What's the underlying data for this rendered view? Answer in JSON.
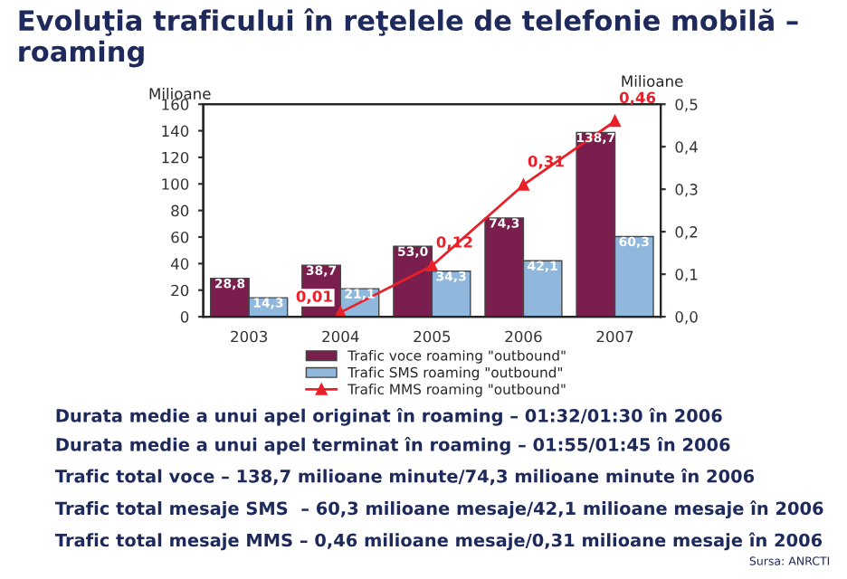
{
  "chart_data": {
    "type": "bar",
    "title": "Evoluţia traficului în reţelele de telefonie mobilă – roaming",
    "categories": [
      "2003",
      "2004",
      "2005",
      "2006",
      "2007"
    ],
    "series": [
      {
        "name": "Trafic voce roaming \"outbound\"",
        "color": "#7a1f4d",
        "values": [
          28.8,
          38.7,
          53.0,
          74.3,
          138.7
        ],
        "value_labels": [
          "28,8",
          "38,7",
          "53,0",
          "74,3",
          "138,7"
        ]
      },
      {
        "name": "Trafic SMS roaming \"outbound\"",
        "color": "#8fb8dc",
        "values": [
          14.3,
          21.1,
          34.3,
          42.1,
          60.3
        ],
        "value_labels": [
          "14,3",
          "21,1",
          "34,3",
          "42,1",
          "60,3"
        ]
      },
      {
        "name": "Trafic MMS roaming \"outbound\"",
        "color": "#e8202a",
        "type": "line",
        "axis": "y2",
        "values": [
          null,
          0.01,
          0.12,
          0.31,
          0.46
        ],
        "value_labels": [
          null,
          "0,01",
          "0,12",
          "0,31",
          "0,46"
        ]
      }
    ],
    "ylabel": "Milioane",
    "y2label": "Milioane",
    "ylim": [
      0,
      160
    ],
    "yticks": [
      0,
      20,
      40,
      60,
      80,
      100,
      120,
      140,
      160
    ],
    "y2lim": [
      0,
      0.5
    ],
    "y2ticks": [
      {
        "value": 0,
        "label": "0,0"
      },
      {
        "value": 0.1,
        "label": "0,1"
      },
      {
        "value": 0.2,
        "label": "0,2"
      },
      {
        "value": 0.3,
        "label": "0,3"
      },
      {
        "value": 0.4,
        "label": "0,4"
      },
      {
        "value": 0.5,
        "label": "0,5"
      }
    ],
    "marker": "triangle",
    "legend": "bottom",
    "grid": false,
    "annotations": [
      "Durata medie a unui apel originat în roaming – 01:32/01:30 în 2006",
      "Durata medie a unui apel terminat în roaming – 01:55/01:45 în 2006",
      "Trafic total voce – 138,7 milioane minute/74,3 milioane minute în 2006",
      "Trafic total mesaje SMS  – 60,3 milioane mesaje/42,1 milioane mesaje în 2006",
      "Trafic total mesaje MMS – 0,46 milioane mesaje/0,31 milioane mesaje în 2006",
      "Sursa: ANRCTI"
    ]
  }
}
